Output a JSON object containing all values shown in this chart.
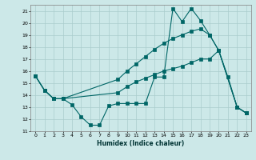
{
  "xlabel": "Humidex (Indice chaleur)",
  "bg_color": "#cce8e8",
  "grid_color": "#aacccc",
  "line_color": "#006666",
  "xlim": [
    -0.5,
    23.5
  ],
  "ylim": [
    11,
    21.5
  ],
  "xticks": [
    0,
    1,
    2,
    3,
    4,
    5,
    6,
    7,
    8,
    9,
    10,
    11,
    12,
    13,
    14,
    15,
    16,
    17,
    18,
    19,
    20,
    21,
    22,
    23
  ],
  "yticks": [
    11,
    12,
    13,
    14,
    15,
    16,
    17,
    18,
    19,
    20,
    21
  ],
  "line1_x": [
    0,
    1,
    2,
    3,
    4,
    5,
    6,
    7,
    8,
    9,
    10,
    11,
    12,
    13,
    14,
    15,
    16,
    17,
    18,
    19,
    20,
    21,
    22,
    23
  ],
  "line1_y": [
    15.6,
    14.4,
    13.7,
    13.7,
    13.2,
    12.2,
    11.5,
    11.5,
    13.1,
    13.3,
    13.3,
    13.3,
    13.3,
    15.5,
    15.5,
    21.2,
    20.1,
    21.2,
    20.2,
    19.0,
    17.7,
    15.5,
    13.0,
    12.5
  ],
  "line2_x": [
    0,
    1,
    2,
    3,
    9,
    10,
    11,
    12,
    13,
    14,
    15,
    16,
    17,
    18,
    19,
    20,
    22,
    23
  ],
  "line2_y": [
    15.6,
    14.4,
    13.7,
    13.7,
    15.3,
    16.0,
    16.6,
    17.2,
    17.8,
    18.3,
    18.7,
    19.0,
    19.3,
    19.5,
    19.0,
    17.7,
    13.0,
    12.5
  ],
  "line3_x": [
    0,
    1,
    2,
    3,
    9,
    10,
    11,
    12,
    13,
    14,
    15,
    16,
    17,
    18,
    19,
    20,
    22,
    23
  ],
  "line3_y": [
    15.6,
    14.4,
    13.7,
    13.7,
    14.2,
    14.7,
    15.1,
    15.4,
    15.7,
    16.0,
    16.2,
    16.4,
    16.7,
    17.0,
    17.0,
    17.7,
    13.0,
    12.5
  ]
}
